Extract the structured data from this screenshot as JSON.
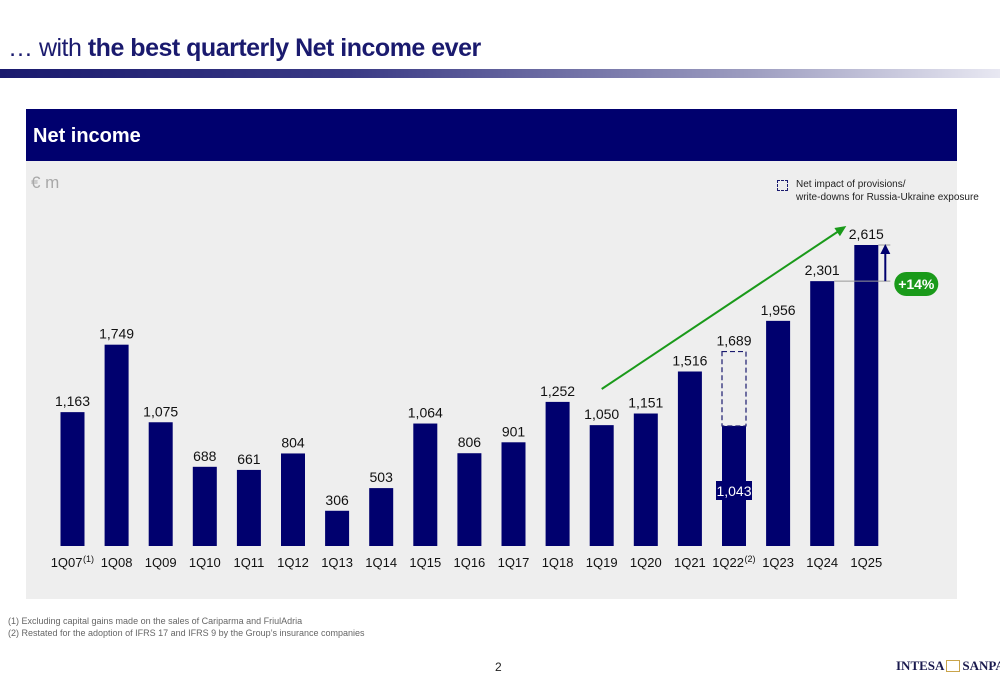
{
  "header": {
    "title_prefix": "… with ",
    "title_main": "the best quarterly Net income ever"
  },
  "panel": {
    "title": "Net income",
    "unit": "€ m"
  },
  "legend": {
    "line1": "Net impact of provisions/",
    "line2": "write-downs for Russia-Ukraine exposure"
  },
  "chart_data": {
    "type": "bar",
    "categories": [
      "1Q07",
      "1Q08",
      "1Q09",
      "1Q10",
      "1Q11",
      "1Q12",
      "1Q13",
      "1Q14",
      "1Q15",
      "1Q16",
      "1Q17",
      "1Q18",
      "1Q19",
      "1Q20",
      "1Q21",
      "1Q22",
      "1Q23",
      "1Q24",
      "1Q25"
    ],
    "category_superscripts": [
      "(1)",
      "",
      "",
      "",
      "",
      "",
      "",
      "",
      "",
      "",
      "",
      "",
      "",
      "",
      "",
      "(2)",
      "",
      "",
      ""
    ],
    "values": [
      1163,
      1749,
      1075,
      688,
      661,
      804,
      306,
      503,
      1064,
      806,
      901,
      1252,
      1050,
      1151,
      1516,
      1043,
      1956,
      2301,
      2615
    ],
    "value_labels": [
      "1,163",
      "1,749",
      "1,075",
      "688",
      "661",
      "804",
      "306",
      "503",
      "1,064",
      "806",
      "901",
      "1,252",
      "1,050",
      "1,151",
      "1,516",
      "1,043",
      "1,956",
      "2,301",
      "2,615"
    ],
    "adjusted": {
      "category": "1Q22",
      "value": 1689,
      "label": "1,689"
    },
    "growth_annotation": {
      "from": "1Q24",
      "to": "1Q25",
      "label": "+14%"
    },
    "trend_arrow": {
      "from": "1Q19",
      "to": "1Q25"
    },
    "ylim": [
      0,
      2700
    ],
    "grid": false,
    "legend_position": "top-right",
    "colors": {
      "bar": "#00006e",
      "adjusted_outline": "#1a1a6e",
      "arrow": "#1a9a1a",
      "badge": "#1a9a1a"
    }
  },
  "footnotes": [
    "(1)  Excluding capital gains made on the sales of Cariparma and FriulAdria",
    "(2)  Restated for the adoption of IFRS 17 and IFRS 9 by the Group’s insurance companies"
  ],
  "page_number": "2",
  "logo": {
    "left": "INTESA",
    "right": "SANPAOLO"
  }
}
